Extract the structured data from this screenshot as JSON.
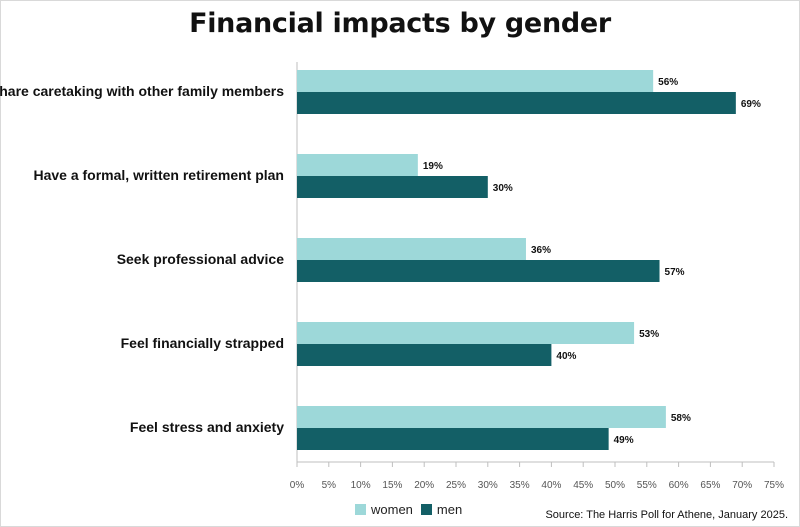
{
  "chart_data": {
    "type": "bar",
    "orientation": "horizontal",
    "title": "Financial impacts by gender",
    "categories": [
      "Share caretaking with other family members",
      "Have a formal, written retirement plan",
      "Seek professional advice",
      "Feel financially strapped",
      "Feel stress and anxiety"
    ],
    "series": [
      {
        "name": "women",
        "color": "#9dd8d9",
        "values": [
          56,
          19,
          36,
          53,
          58
        ]
      },
      {
        "name": "men",
        "color": "#135f66",
        "values": [
          69,
          30,
          57,
          40,
          49
        ]
      }
    ],
    "value_suffix": "%",
    "xlim": [
      0,
      75
    ],
    "x_ticks": [
      "0%",
      "5%",
      "10%",
      "15%",
      "20%",
      "25%",
      "30%",
      "35%",
      "40%",
      "45%",
      "50%",
      "55%",
      "60%",
      "65%",
      "70%",
      "75%"
    ],
    "grid": false,
    "legend_position": "bottom"
  },
  "source": "Source: The Harris Poll for Athene, January 2025."
}
